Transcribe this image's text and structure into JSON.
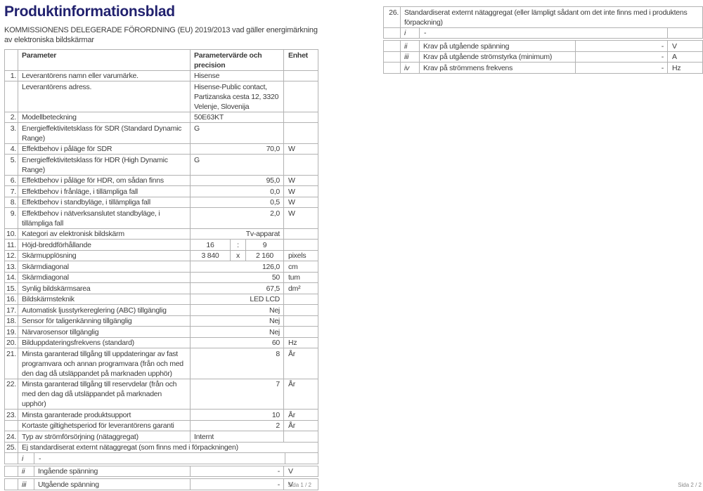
{
  "colors": {
    "title": "#21216e",
    "text": "#3c3c3c",
    "border": "#b2b2b2",
    "footer": "#8a8a8a"
  },
  "page1": {
    "title": "Produktinformationsblad",
    "subtitle": "KOMMISSIONENS DELEGERADE FÖRORDNING (EU) 2019/2013 vad gäller energimärkning av elektroniska bildskärmar",
    "footer": "Sida 1 / 2",
    "table": {
      "rows": [
        {
          "header": true,
          "parameter": "Parameter",
          "value": "Parametervärde och precision",
          "unit": "Enhet"
        },
        {
          "num": "1.",
          "label": "Leverantörens namn eller varumärke.",
          "value": "Hisense",
          "align": "left",
          "unit": ""
        },
        {
          "num": "",
          "label": "Leverantörens adress.",
          "value": "Hisense-Public contact, Partizanska cesta 12, 3320 Velenje, Slovenija",
          "align": "left",
          "unit": ""
        },
        {
          "num": "2.",
          "label": "Modellbeteckning",
          "value": "50E63KT",
          "align": "left",
          "unit": ""
        },
        {
          "num": "3.",
          "label": "Energieffektivitetsklass för SDR (Standard Dynamic Range)",
          "value": "G",
          "align": "left",
          "unit": ""
        },
        {
          "num": "4.",
          "label": "Effektbehov i påläge för SDR",
          "value": "70,0",
          "align": "right",
          "unit": "W"
        },
        {
          "num": "5.",
          "label": "Energieffektivitetsklass för HDR (High Dynamic Range)",
          "value": "G",
          "align": "left",
          "unit": ""
        },
        {
          "num": "6.",
          "label": "Effektbehov i påläge för HDR, om sådan finns",
          "value": "95,0",
          "align": "right",
          "unit": "W"
        },
        {
          "num": "7.",
          "label": "Effektbehov i frånläge, i tillämpliga fall",
          "value": "0,0",
          "align": "right",
          "unit": "W"
        },
        {
          "num": "8.",
          "label": "Effektbehov i standbyläge, i tillämpliga fall",
          "value": "0,5",
          "align": "right",
          "unit": "W"
        },
        {
          "num": "9.",
          "label": "Effektbehov i nätverksanslutet standbyläge, i tillämpliga fall",
          "value": "2,0",
          "align": "right",
          "unit": "W"
        },
        {
          "num": "10.",
          "label": "Kategori av elektronisk bildskärm",
          "value": "Tv-apparat",
          "align": "right",
          "unit": ""
        },
        {
          "num": "11.",
          "label": "Höjd-breddförhållande",
          "cells": [
            "16",
            ":",
            "9"
          ],
          "unit": ""
        },
        {
          "num": "12.",
          "label": "Skärmupplösning",
          "cells": [
            "3 840",
            "x",
            "2 160"
          ],
          "unit": "pixels"
        },
        {
          "num": "13.",
          "label": "Skärmdiagonal",
          "value": "126,0",
          "align": "right",
          "unit": "cm"
        },
        {
          "num": "14.",
          "label": "Skärmdiagonal",
          "value": "50",
          "align": "right",
          "unit": "tum"
        },
        {
          "num": "15.",
          "label": "Synlig bildskärmsarea",
          "value": "67,5",
          "align": "right",
          "unit": "dm²"
        },
        {
          "num": "16.",
          "label": "Bildskärmsteknik",
          "value": "LED LCD",
          "align": "right",
          "unit": ""
        },
        {
          "num": "17.",
          "label": "Automatisk ljusstyrkereglering (ABC) tillgänglig",
          "value": "Nej",
          "align": "right",
          "unit": ""
        },
        {
          "num": "18.",
          "label": "Sensor för taligenkänning tillgänglig",
          "value": "Nej",
          "align": "right",
          "unit": ""
        },
        {
          "num": "19.",
          "label": "Närvarosensor tillgänglig",
          "value": "Nej",
          "align": "right",
          "unit": ""
        },
        {
          "num": "20.",
          "label": "Bilduppdateringsfrekvens (standard)",
          "value": "60",
          "align": "right",
          "unit": "Hz"
        },
        {
          "num": "21.",
          "label": "Minsta garanterad tillgång till uppdateringar av fast programvara och annan programvara (från och med den dag då utsläppandet på marknaden upphör)",
          "value": "8",
          "align": "right",
          "unit": "År"
        },
        {
          "num": "22.",
          "label": "Minsta garanterad tillgång till reservdelar (från och med den dag då utsläppandet på marknaden upphör)",
          "value": "7",
          "align": "right",
          "unit": "År"
        },
        {
          "num": "23.",
          "label": "Minsta garanterade produktsupport",
          "value": "10",
          "align": "right",
          "unit": "År"
        },
        {
          "num": "",
          "label": "Kortaste giltighetsperiod för leverantörens garanti",
          "value": "2",
          "align": "right",
          "unit": "År"
        },
        {
          "num": "24.",
          "label": "Typ av strömförsörjning (nätaggregat)",
          "value": "Internt",
          "align": "left",
          "unit": ""
        },
        {
          "num": "25.",
          "label": "Ej standardiserat externt nätaggregat (som finns med i förpackningen)",
          "span": true
        },
        {
          "roman": "i",
          "dash": "-"
        },
        {
          "roman": "ii",
          "label": "Ingående spänning",
          "value": "-",
          "align": "right",
          "unit": "V",
          "gap": true
        },
        {
          "roman": "iii",
          "label": "Utgående spänning",
          "value": "-",
          "align": "right",
          "unit": "V",
          "gap": true
        }
      ]
    }
  },
  "page2": {
    "footer": "Sida 2 / 2",
    "table": {
      "rows": [
        {
          "num": "26.",
          "label": "Standardiserat externt nätaggregat (eller lämpligt sådant om det inte finns med i produktens förpackning)",
          "span": true
        },
        {
          "roman": "i",
          "dash": "-"
        },
        {
          "roman": "ii",
          "label": "Krav på utgående spänning",
          "value": "-",
          "align": "right",
          "unit": "V",
          "gap": true
        },
        {
          "roman": "iii",
          "label": "Krav på utgående strömstyrka (minimum)",
          "value": "-",
          "align": "right",
          "unit": "A"
        },
        {
          "roman": "iv",
          "label": "Krav på strömmens frekvens",
          "value": "-",
          "align": "right",
          "unit": "Hz"
        }
      ]
    }
  }
}
